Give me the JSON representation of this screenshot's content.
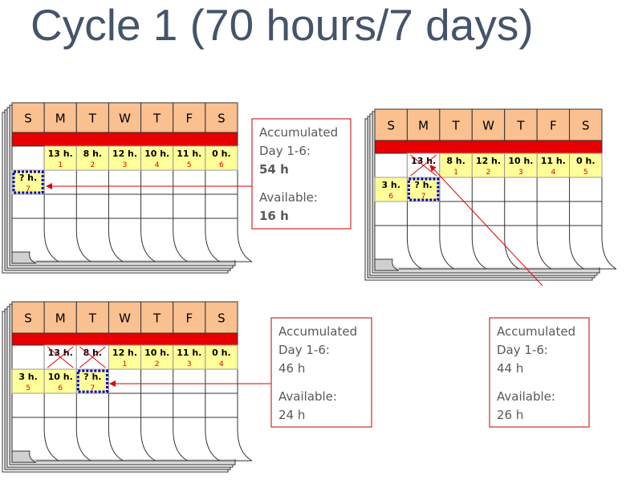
{
  "title": "Cycle 1 (70 hours/7 days)",
  "calendars": [
    {
      "days": [
        "S",
        "M",
        "T",
        "W",
        "T",
        "F",
        "S"
      ],
      "rows": [
        [
          null,
          {
            "hours": "13 h.",
            "day": "1"
          },
          {
            "hours": "8 h.",
            "day": "2"
          },
          {
            "hours": "12 h.",
            "day": "3"
          },
          {
            "hours": "10 h.",
            "day": "4"
          },
          {
            "hours": "11 h.",
            "day": "5"
          },
          {
            "hours": "0 h.",
            "day": "6"
          }
        ],
        [
          {
            "hours": "? h.",
            "day": "7",
            "current": true
          }
        ]
      ]
    },
    {
      "days": [
        "S",
        "M",
        "T",
        "W",
        "T",
        "F",
        "S"
      ],
      "rows": [
        [
          null,
          {
            "hours": "13 h.",
            "crossed": true
          },
          {
            "hours": "8 h.",
            "day": "1"
          },
          {
            "hours": "12 h.",
            "day": "2"
          },
          {
            "hours": "10 h.",
            "day": "3"
          },
          {
            "hours": "11 h.",
            "day": "4"
          },
          {
            "hours": "0 h.",
            "day": "5"
          }
        ],
        [
          {
            "hours": "3 h.",
            "day": "6"
          },
          {
            "hours": "? h.",
            "day": "7",
            "current": true
          }
        ]
      ]
    },
    {
      "days": [
        "S",
        "M",
        "T",
        "W",
        "T",
        "F",
        "S"
      ],
      "rows": [
        [
          null,
          {
            "hours": "13 h.",
            "crossed": true
          },
          {
            "hours": "8 h.",
            "crossed": true
          },
          {
            "hours": "12 h.",
            "day": "1"
          },
          {
            "hours": "10 h.",
            "day": "2"
          },
          {
            "hours": "11 h.",
            "day": "3"
          },
          {
            "hours": "0 h.",
            "day": "4"
          }
        ],
        [
          {
            "hours": "3 h.",
            "day": "5"
          },
          {
            "hours": "10 h.",
            "day": "6"
          },
          {
            "hours": "? h.",
            "day": "7",
            "current": true
          }
        ]
      ]
    }
  ],
  "info_boxes": [
    {
      "accumulated_label": "Accumulated",
      "day_range": "Day 1-6:",
      "accumulated": "54 h",
      "available_label": "Available:",
      "available": "16 h",
      "bold": true
    },
    {
      "accumulated_label": "Accumulated",
      "day_range": "Day 1-6:",
      "accumulated": "46 h",
      "available_label": "Available:",
      "available": "24 h",
      "bold": false
    },
    {
      "accumulated_label": "Accumulated",
      "day_range": "Day 1-6:",
      "accumulated": "44 h",
      "available_label": "Available:",
      "available": "26 h",
      "bold": false
    }
  ]
}
